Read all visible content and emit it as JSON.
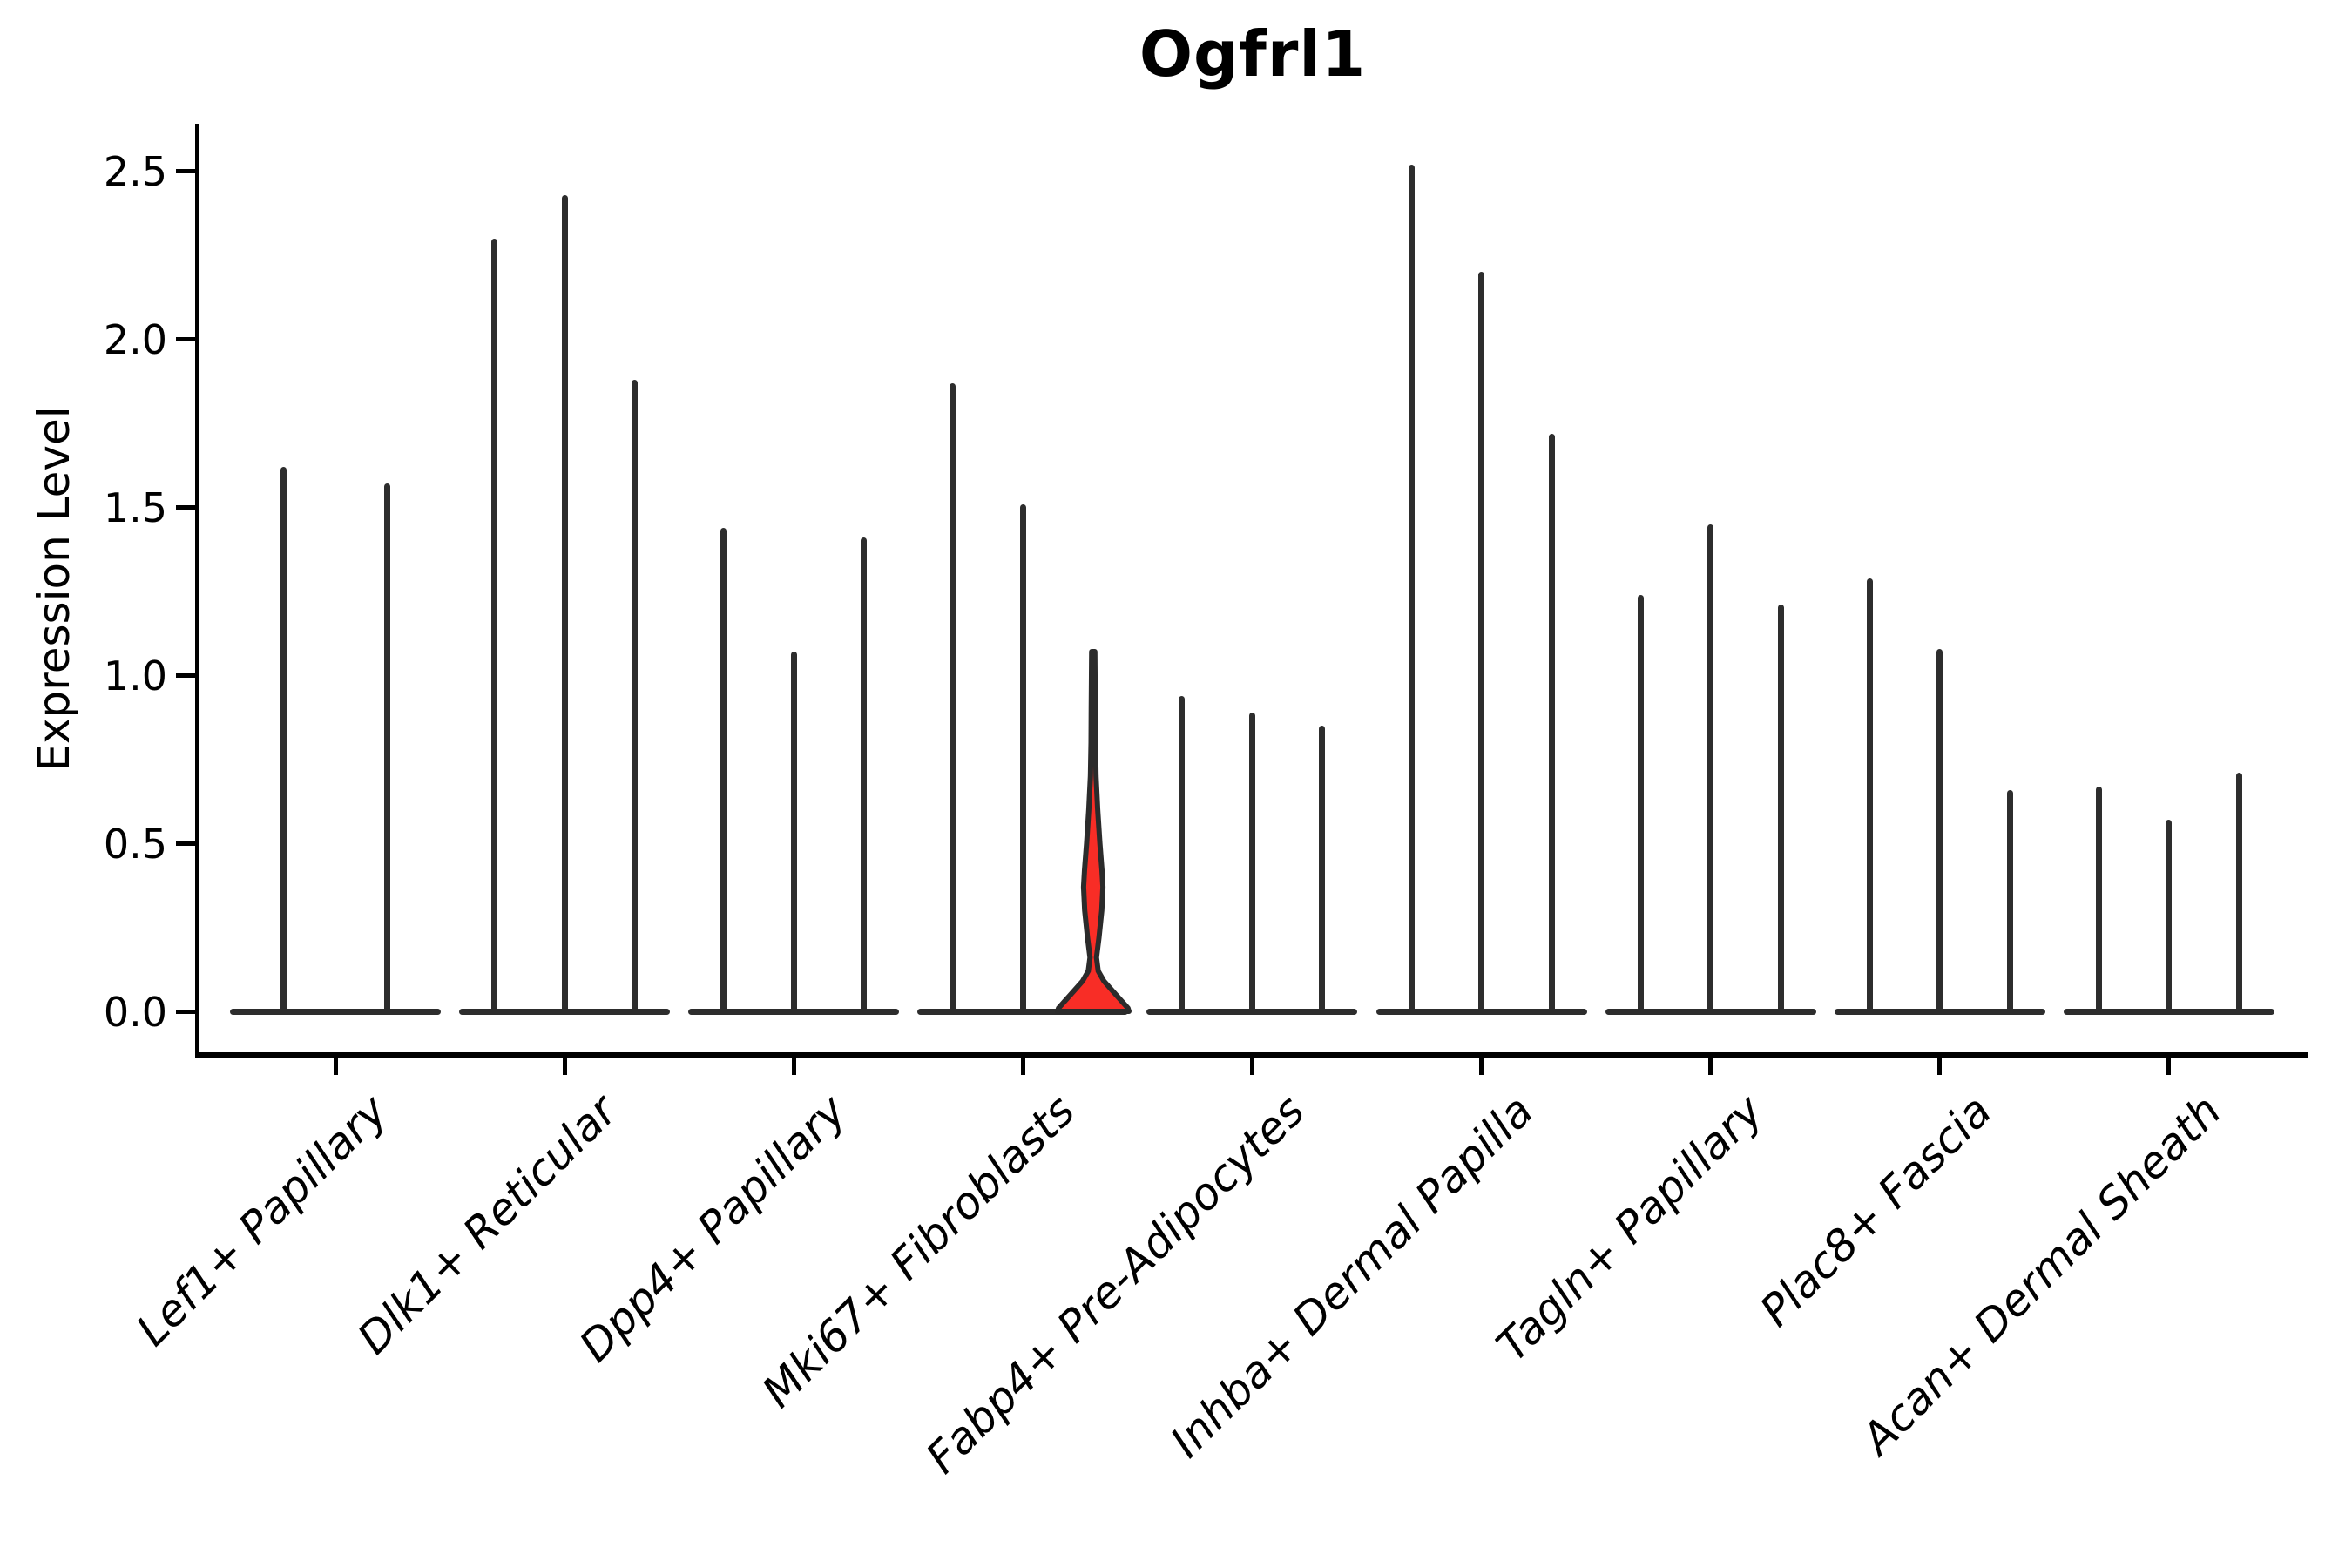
{
  "title": "Ogfrl1",
  "y_axis": {
    "label": "Expression Level",
    "ticks": [
      {
        "label": "0.0",
        "value": 0.0
      },
      {
        "label": "0.5",
        "value": 0.5
      },
      {
        "label": "1.0",
        "value": 1.0
      },
      {
        "label": "1.5",
        "value": 1.5
      },
      {
        "label": "2.0",
        "value": 2.0
      },
      {
        "label": "2.5",
        "value": 2.5
      }
    ]
  },
  "colors": {
    "violin_line": "#2d2d2d",
    "axis": "#000000",
    "highlight_fill": "#f82d26",
    "highlight_stroke": "#2b2b2b",
    "background": "#ffffff"
  },
  "chart_data": {
    "type": "violin",
    "title": "Ogfrl1",
    "ylabel": "Expression Level",
    "ylim": [
      -0.12,
      2.64
    ],
    "grid": false,
    "legend": "none",
    "categories": [
      "Lef1+ Papillary",
      "Dlk1+ Reticular",
      "Dpp4+ Papillary",
      "Mki67+ Fibroblasts",
      "Fabp4+ Pre-Adipocytes",
      "Inhba+ Dermal Papilla",
      "Tagln+ Papillary",
      "Plac8+ Fascia",
      "Acan+ Dermal Sheath"
    ],
    "groups": [
      {
        "label": "Lef1+ Papillary",
        "violins": [
          {
            "max": 1.62
          },
          {
            "max": 1.57
          }
        ]
      },
      {
        "label": "Dlk1+ Reticular",
        "violins": [
          {
            "max": 2.3
          },
          {
            "max": 2.43
          },
          {
            "max": 1.88
          }
        ]
      },
      {
        "label": "Dpp4+ Papillary",
        "violins": [
          {
            "max": 1.44
          },
          {
            "max": 1.07
          },
          {
            "max": 1.41
          }
        ]
      },
      {
        "label": "Mki67+ Fibroblasts",
        "violins": [
          {
            "max": 1.87
          },
          {
            "max": 1.51
          },
          {
            "max": 1.07,
            "highlight": true,
            "profile": [
              [
                1.07,
                0.045
              ],
              [
                1.0,
                0.05
              ],
              [
                0.9,
                0.055
              ],
              [
                0.8,
                0.062
              ],
              [
                0.7,
                0.078
              ],
              [
                0.6,
                0.125
              ],
              [
                0.5,
                0.185
              ],
              [
                0.42,
                0.245
              ],
              [
                0.37,
                0.27
              ],
              [
                0.3,
                0.24
              ],
              [
                0.22,
                0.16
              ],
              [
                0.16,
                0.09
              ],
              [
                0.12,
                0.14
              ],
              [
                0.09,
                0.3
              ],
              [
                0.06,
                0.55
              ],
              [
                0.03,
                0.8
              ],
              [
                0.01,
                0.97
              ],
              [
                0.0,
                1.0
              ]
            ]
          }
        ]
      },
      {
        "label": "Fabp4+ Pre-Adipocytes",
        "violins": [
          {
            "max": 0.94
          },
          {
            "max": 0.89
          },
          {
            "max": 0.85
          }
        ]
      },
      {
        "label": "Inhba+ Dermal Papilla",
        "violins": [
          {
            "max": 2.52
          },
          {
            "max": 2.2
          },
          {
            "max": 1.72
          }
        ]
      },
      {
        "label": "Tagln+ Papillary",
        "violins": [
          {
            "max": 1.24
          },
          {
            "max": 1.45
          },
          {
            "max": 1.21
          }
        ]
      },
      {
        "label": "Plac8+ Fascia",
        "violins": [
          {
            "max": 1.29
          },
          {
            "max": 1.08
          },
          {
            "max": 0.66
          }
        ]
      },
      {
        "label": "Acan+ Dermal Sheath",
        "violins": [
          {
            "max": 0.67
          },
          {
            "max": 0.57
          },
          {
            "max": 0.71
          }
        ]
      }
    ]
  }
}
